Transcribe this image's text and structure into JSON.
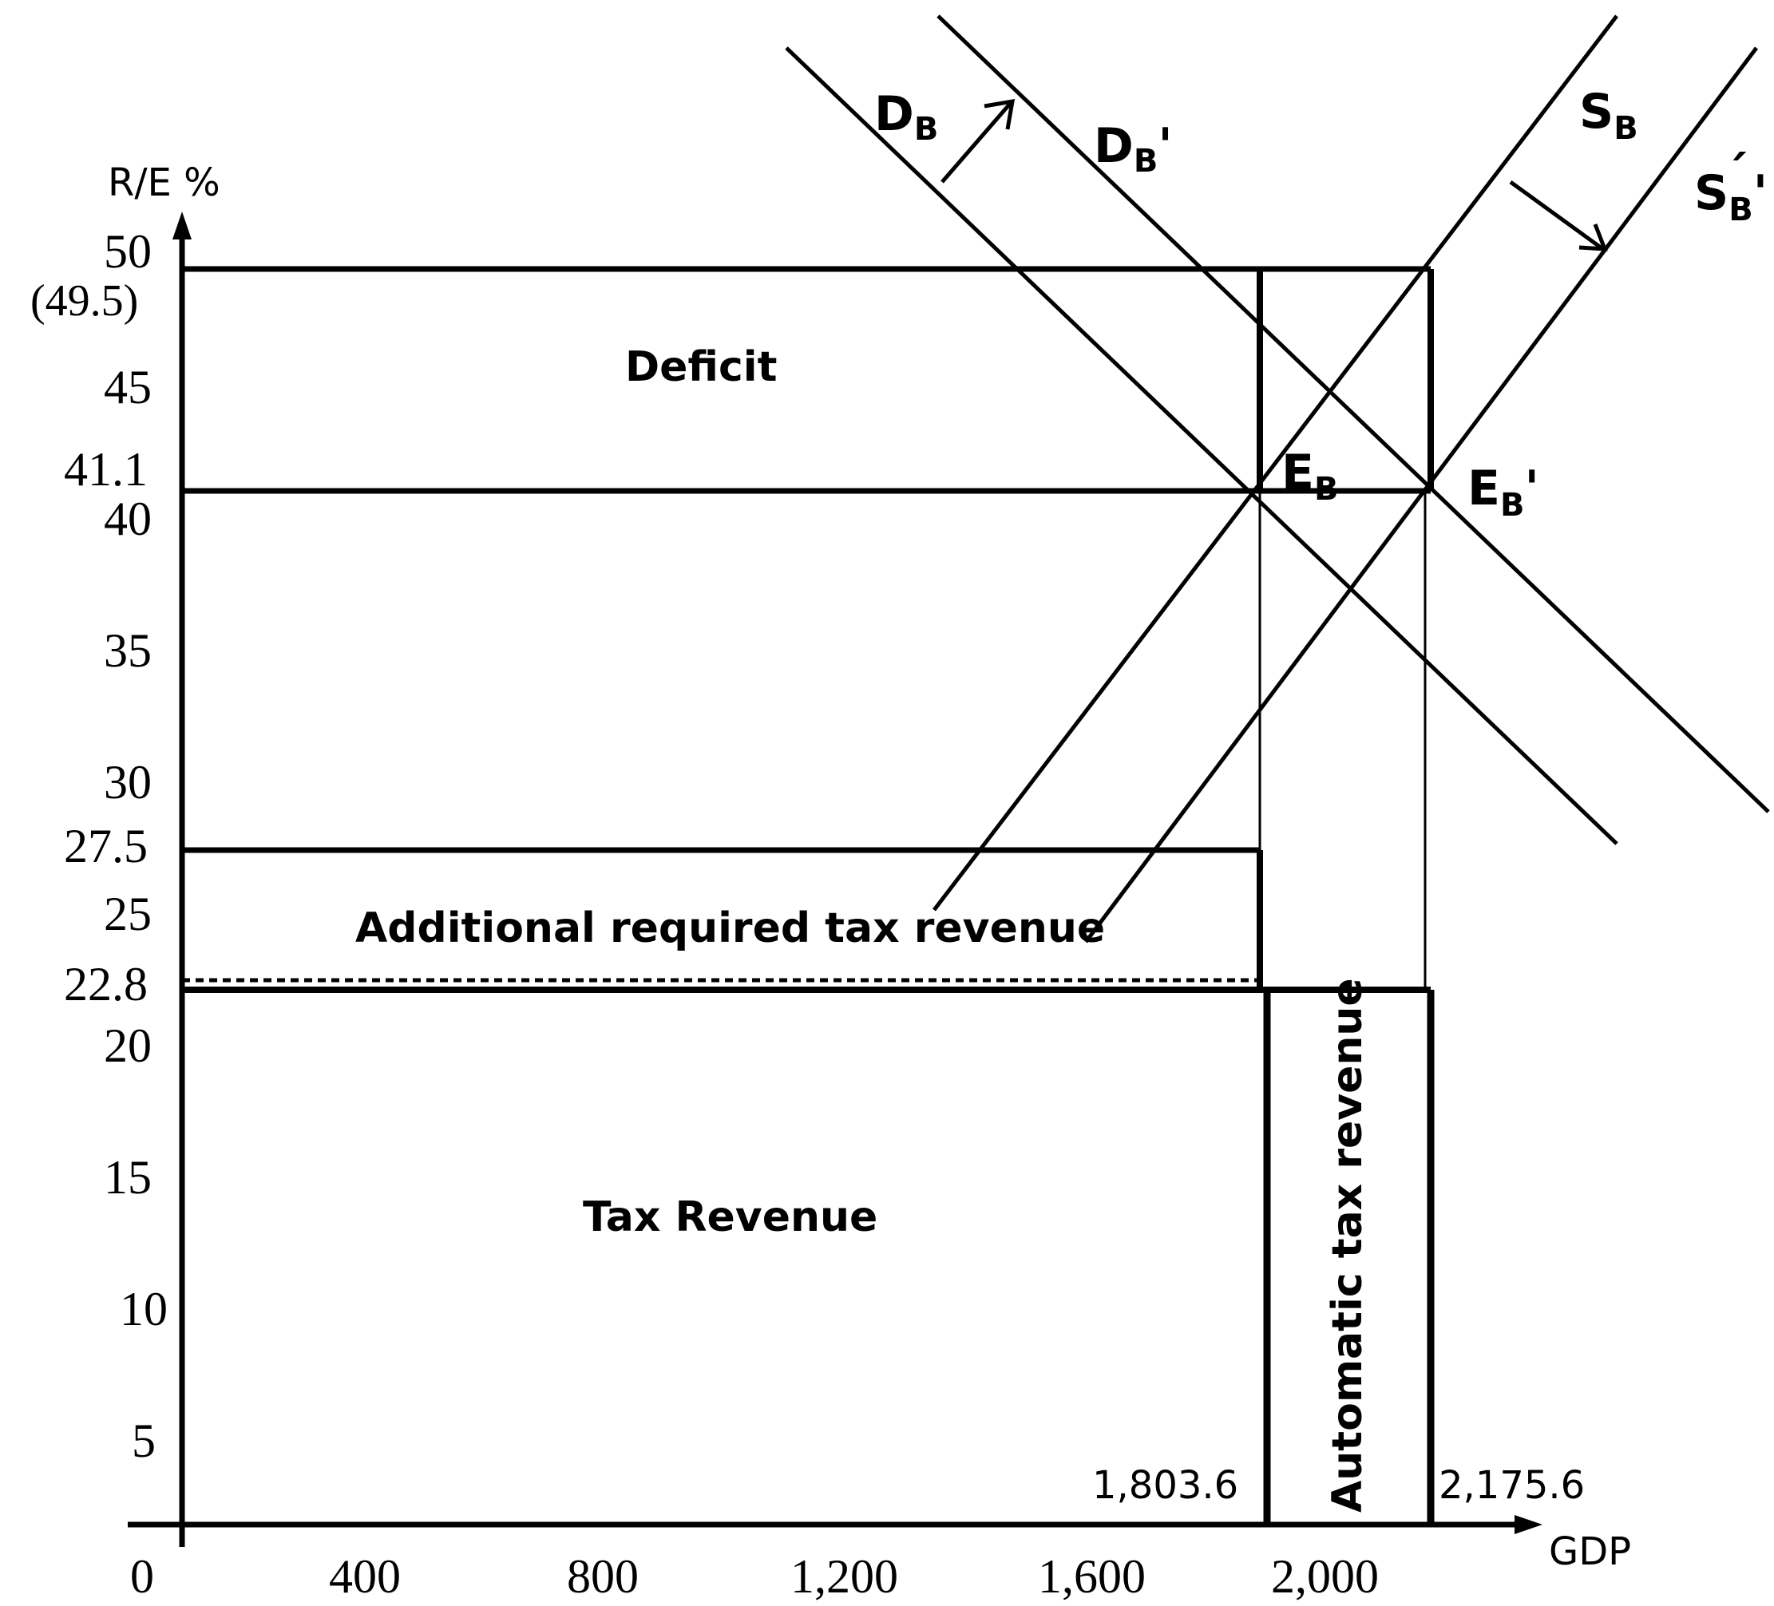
{
  "axes": {
    "y_label": "R/E %",
    "x_label": "GDP",
    "y_ticks": [
      "50",
      "45",
      "40",
      "35",
      "30",
      "25",
      "20",
      "15",
      "10",
      "5"
    ],
    "x_ticks": [
      "0",
      "400",
      "800",
      "1,200",
      "1,600",
      "2,000"
    ],
    "y_special": {
      "v49_5": "(49.5)",
      "v41_1": "41.1",
      "v27_5": "27.5",
      "v22_8": "22.8"
    }
  },
  "regions": {
    "deficit": "Deficit",
    "additional": "Additional required tax revenue",
    "tax_revenue": "Tax Revenue",
    "automatic": "Automatic tax revenue"
  },
  "x_values": {
    "left": "1,803.6",
    "right": "2,175.6"
  },
  "curves": {
    "db_main": "D",
    "db_sub": "B",
    "db2_main": "D",
    "db2_sub": "B",
    "db2_prime": "'",
    "sb_main": "S",
    "sb_sub": "B",
    "sb2_main": "S",
    "sb2_sub": "B",
    "sb2_prime": "'",
    "sb2_accent": "´",
    "eb_main": "E",
    "eb_sub": "B",
    "eb2_main": "E",
    "eb2_sub": "B",
    "eb2_prime": "'"
  }
}
